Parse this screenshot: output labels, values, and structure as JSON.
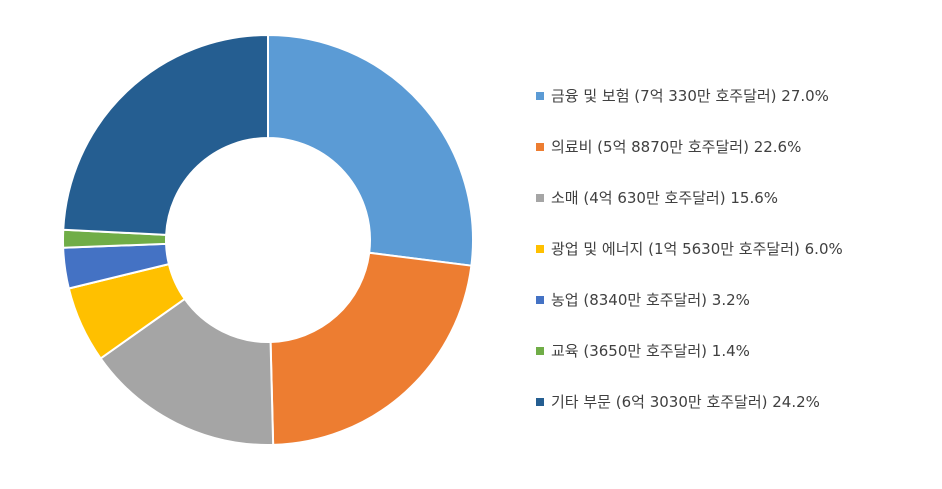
{
  "chart_data": {
    "type": "pie",
    "donut": true,
    "title": "",
    "legend_position": "right",
    "categories": [
      "금융 및 보험 (7억 330만 호주달러) 27.0%",
      "의료비 (5억 8870만 호주달러) 22.6%",
      "소매  (4억 630만 호주달러) 15.6%",
      "광업 및 에너지  (1억 5630만 호주달러) 6.0%",
      "농업 (8340만 호주달러) 3.2%",
      "교육 (3650만 호주달러) 1.4%",
      "기타 부문 (6억 3030만 호주달러) 24.2%"
    ],
    "values": [
      27.0,
      22.6,
      15.6,
      6.0,
      3.2,
      1.4,
      24.2
    ],
    "colors": [
      "#5B9BD5",
      "#ED7D31",
      "#A5A5A5",
      "#FFC000",
      "#4472C4",
      "#70AD47",
      "#255E91"
    ]
  }
}
